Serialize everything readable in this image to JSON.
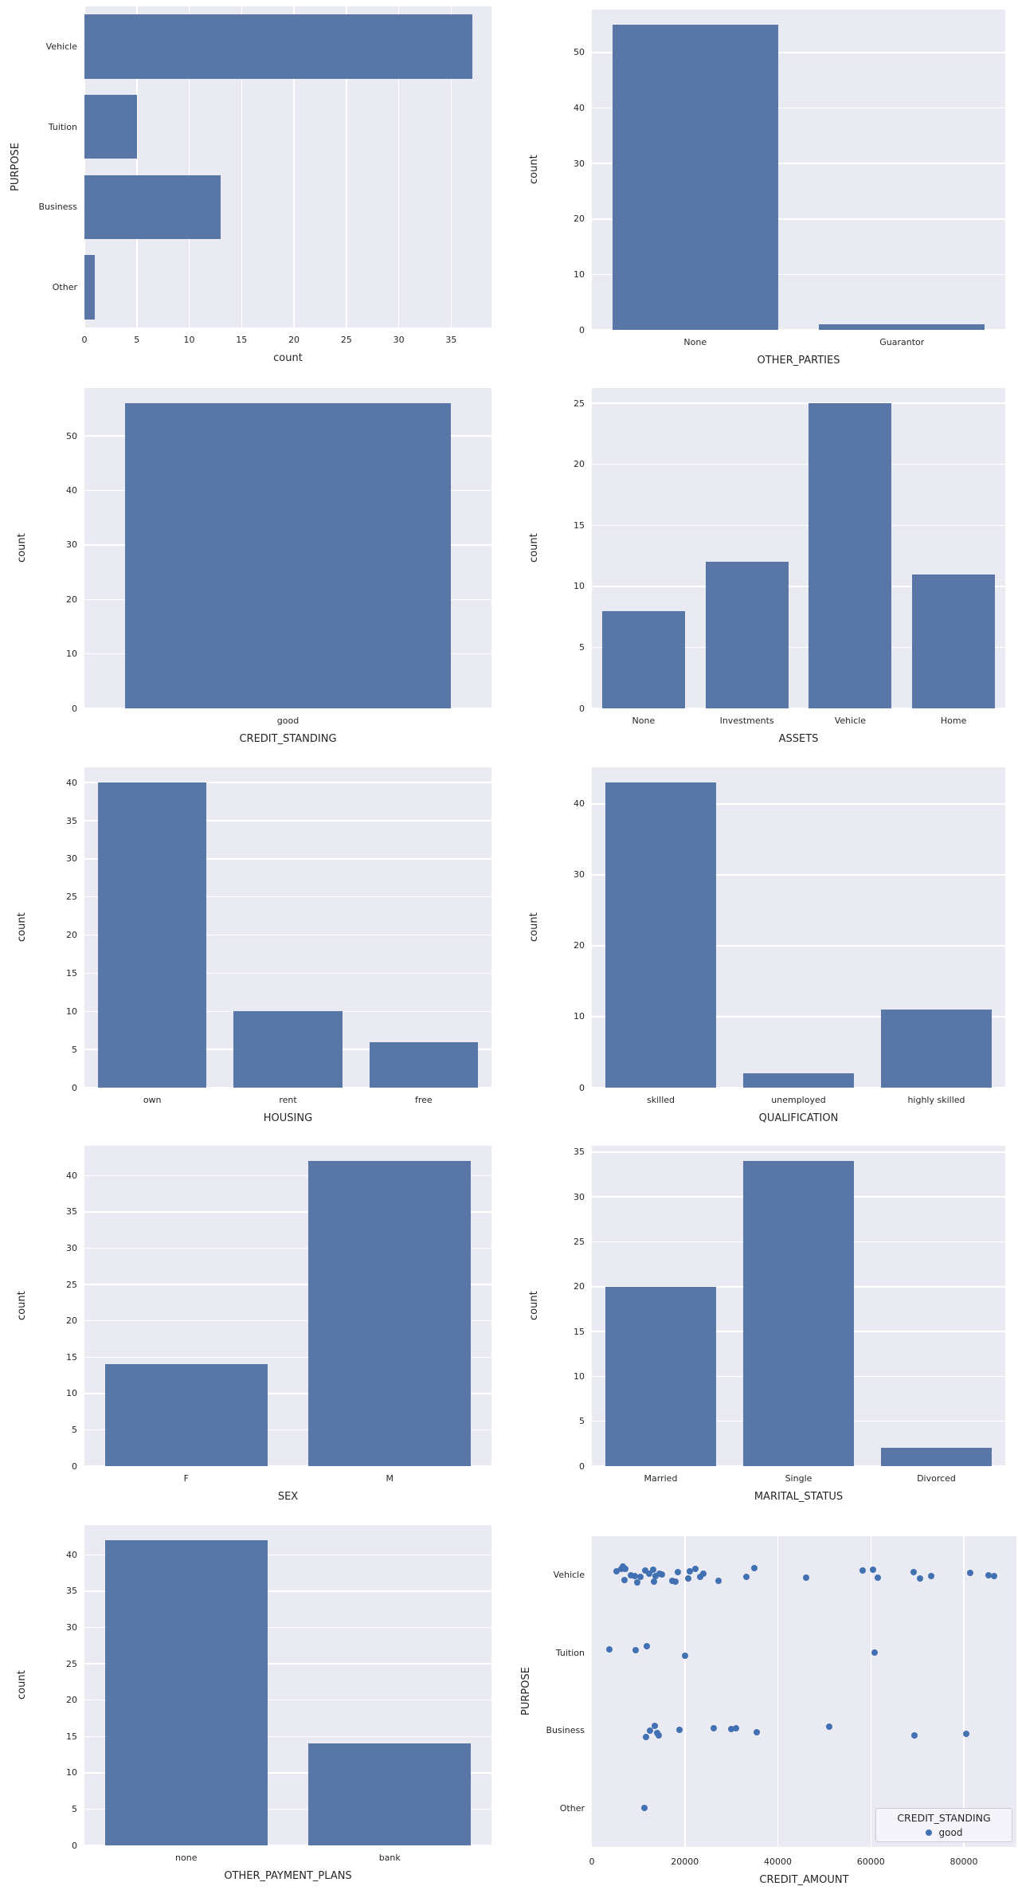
{
  "figure": {
    "background": "#ffffff",
    "axes_background": "#eaeaf2",
    "grid_color": "#ffffff",
    "bar_color": "#5877a7",
    "dot_color": "#4271b3",
    "text_color": "#262626"
  },
  "chart_data": [
    {
      "id": "purpose",
      "type": "bar",
      "orientation": "horizontal",
      "row": 0,
      "col": 0,
      "title": "",
      "xlabel": "count",
      "ylabel": "PURPOSE",
      "categories": [
        "Vehicle",
        "Tuition",
        "Business",
        "Other"
      ],
      "values": [
        37,
        5,
        13,
        1
      ],
      "value_ticks": [
        0,
        5,
        10,
        15,
        20,
        25,
        30,
        35
      ],
      "value_max": 38.85,
      "grid": "vertical-white-on-gray"
    },
    {
      "id": "other_parties",
      "type": "bar",
      "orientation": "vertical",
      "row": 0,
      "col": 1,
      "title": "",
      "xlabel": "OTHER_PARTIES",
      "ylabel": "count",
      "categories": [
        "None",
        "Guarantor"
      ],
      "values": [
        55,
        1
      ],
      "value_ticks": [
        0,
        10,
        20,
        30,
        40,
        50
      ],
      "value_max": 57.75,
      "grid": "horizontal-white-on-gray"
    },
    {
      "id": "credit_standing",
      "type": "bar",
      "orientation": "vertical",
      "row": 1,
      "col": 0,
      "title": "",
      "xlabel": "CREDIT_STANDING",
      "ylabel": "count",
      "categories": [
        "good"
      ],
      "values": [
        56
      ],
      "value_ticks": [
        0,
        10,
        20,
        30,
        40,
        50
      ],
      "value_max": 58.8,
      "grid": "horizontal-white-on-gray"
    },
    {
      "id": "assets",
      "type": "bar",
      "orientation": "vertical",
      "row": 1,
      "col": 1,
      "title": "",
      "xlabel": "ASSETS",
      "ylabel": "count",
      "categories": [
        "None",
        "Investments",
        "Vehicle",
        "Home"
      ],
      "values": [
        8,
        12,
        25,
        11
      ],
      "value_ticks": [
        0,
        5,
        10,
        15,
        20,
        25
      ],
      "value_max": 26.25,
      "grid": "horizontal-white-on-gray"
    },
    {
      "id": "housing",
      "type": "bar",
      "orientation": "vertical",
      "row": 2,
      "col": 0,
      "title": "",
      "xlabel": "HOUSING",
      "ylabel": "count",
      "categories": [
        "own",
        "rent",
        "free"
      ],
      "values": [
        40,
        10,
        6
      ],
      "value_ticks": [
        0,
        5,
        10,
        15,
        20,
        25,
        30,
        35,
        40
      ],
      "value_max": 42,
      "grid": "horizontal-white-on-gray"
    },
    {
      "id": "qualification",
      "type": "bar",
      "orientation": "vertical",
      "row": 2,
      "col": 1,
      "title": "",
      "xlabel": "QUALIFICATION",
      "ylabel": "count",
      "categories": [
        "skilled",
        "unemployed",
        "highly skilled"
      ],
      "values": [
        43,
        2,
        11
      ],
      "value_ticks": [
        0,
        10,
        20,
        30,
        40
      ],
      "value_max": 45.15,
      "grid": "horizontal-white-on-gray"
    },
    {
      "id": "sex",
      "type": "bar",
      "orientation": "vertical",
      "row": 3,
      "col": 0,
      "title": "",
      "xlabel": "SEX",
      "ylabel": "count",
      "categories": [
        "F",
        "M"
      ],
      "values": [
        14,
        42
      ],
      "value_ticks": [
        0,
        5,
        10,
        15,
        20,
        25,
        30,
        35,
        40
      ],
      "value_max": 44.1,
      "grid": "horizontal-white-on-gray"
    },
    {
      "id": "marital_status",
      "type": "bar",
      "orientation": "vertical",
      "row": 3,
      "col": 1,
      "title": "",
      "xlabel": "MARITAL_STATUS",
      "ylabel": "count",
      "categories": [
        "Married",
        "Single",
        "Divorced"
      ],
      "values": [
        20,
        34,
        2
      ],
      "value_ticks": [
        0,
        5,
        10,
        15,
        20,
        25,
        30,
        35
      ],
      "value_max": 35.7,
      "grid": "horizontal-white-on-gray"
    },
    {
      "id": "other_payment_plans",
      "type": "bar",
      "orientation": "vertical",
      "row": 4,
      "col": 0,
      "title": "",
      "xlabel": "OTHER_PAYMENT_PLANS",
      "ylabel": "count",
      "categories": [
        "none",
        "bank"
      ],
      "values": [
        42,
        14
      ],
      "value_ticks": [
        0,
        5,
        10,
        15,
        20,
        25,
        30,
        35,
        40
      ],
      "value_max": 44.1,
      "grid": "horizontal-white-on-gray"
    },
    {
      "id": "credit_amount_by_purpose",
      "type": "scatter",
      "row": 4,
      "col": 1,
      "title": "",
      "xlabel": "CREDIT_AMOUNT",
      "ylabel": "PURPOSE",
      "categories": [
        "Vehicle",
        "Tuition",
        "Business",
        "Other"
      ],
      "x_ticks": [
        0,
        20000,
        40000,
        60000,
        80000
      ],
      "xlim": [
        0,
        91300
      ],
      "legend": {
        "title": "CREDIT_STANDING",
        "entries": [
          "good"
        ],
        "position": "lower right"
      },
      "series_name": "good",
      "points": {
        "Vehicle": [
          [
            5300,
            -5
          ],
          [
            6325,
            -8
          ],
          [
            6700,
            -11
          ],
          [
            7010,
            6
          ],
          [
            7180,
            -8
          ],
          [
            8375,
            0
          ],
          [
            9230,
            1
          ],
          [
            9740,
            9
          ],
          [
            10425,
            2
          ],
          [
            11450,
            -6
          ],
          [
            12305,
            -2
          ],
          [
            13160,
            -7
          ],
          [
            13400,
            8
          ],
          [
            13675,
            1
          ],
          [
            14530,
            -2
          ],
          [
            15040,
            -1
          ],
          [
            17265,
            7
          ],
          [
            17950,
            8
          ],
          [
            18500,
            -4
          ],
          [
            20685,
            4
          ],
          [
            21025,
            -5
          ],
          [
            22220,
            -8
          ],
          [
            23245,
            2
          ],
          [
            23930,
            -2
          ],
          [
            27180,
            7
          ],
          [
            33165,
            2
          ],
          [
            34875,
            -9
          ],
          [
            46150,
            3
          ],
          [
            58290,
            -6
          ],
          [
            60510,
            -7
          ],
          [
            61540,
            3
          ],
          [
            69230,
            -4
          ],
          [
            70600,
            4
          ],
          [
            72990,
            1
          ],
          [
            81365,
            -3
          ],
          [
            85300,
            0
          ],
          [
            86500,
            1
          ]
        ],
        "Tuition": [
          [
            3760,
            -4
          ],
          [
            9400,
            -3
          ],
          [
            11790,
            -8
          ],
          [
            20000,
            4
          ],
          [
            60850,
            0
          ]
        ],
        "Business": [
          [
            11620,
            8
          ],
          [
            12480,
            0
          ],
          [
            13500,
            -6
          ],
          [
            14020,
            3
          ],
          [
            14360,
            6
          ],
          [
            18800,
            -1
          ],
          [
            26150,
            -3
          ],
          [
            29910,
            -2
          ],
          [
            30940,
            -3
          ],
          [
            35380,
            2
          ],
          [
            51110,
            -5
          ],
          [
            69400,
            6
          ],
          [
            80510,
            4
          ]
        ],
        "Other": [
          [
            11280,
            0
          ]
        ]
      }
    }
  ]
}
